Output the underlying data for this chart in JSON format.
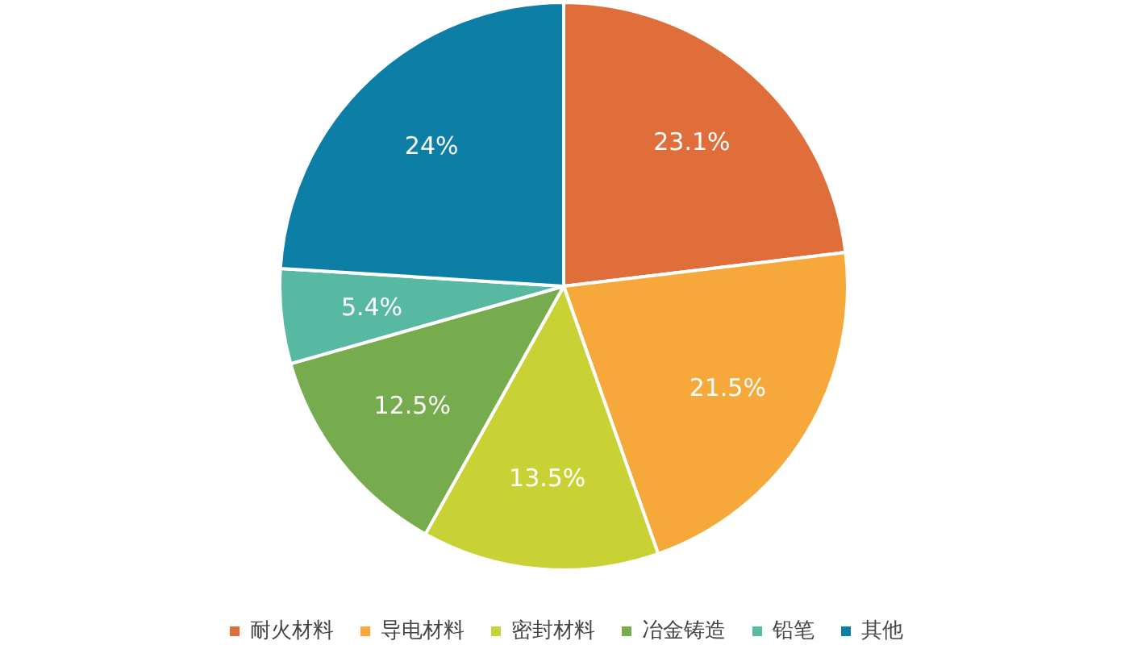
{
  "chart_data": {
    "type": "pie",
    "categories": [
      "耐火材料",
      "导电材料",
      "密封材料",
      "冶金铸造",
      "铅笔",
      "其他"
    ],
    "values": [
      23.1,
      21.5,
      13.5,
      12.5,
      5.4,
      24
    ],
    "colors": [
      "#e06e3a",
      "#f6a83a",
      "#c9d235",
      "#76ac4d",
      "#58b9a2",
      "#0d7fa6"
    ],
    "data_labels": true,
    "value_labels": [
      "23.1%",
      "21.5%",
      "13.5%",
      "12.5%",
      "5.4%",
      "24%"
    ],
    "legend": "bottom"
  }
}
